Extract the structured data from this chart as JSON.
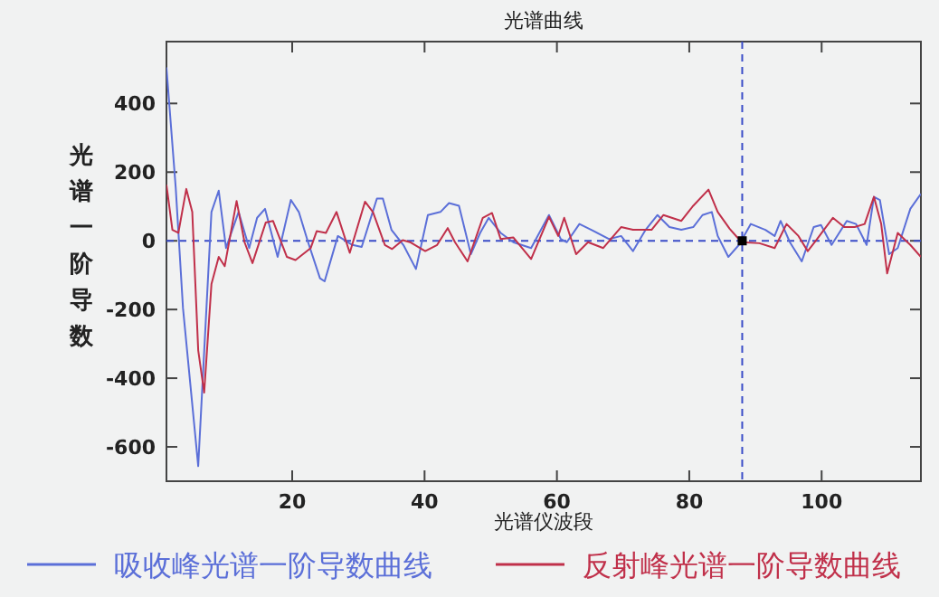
{
  "chart_data": {
    "type": "line",
    "title": "光谱曲线",
    "xlabel": "光谱仪波段",
    "ylabel": "光谱一阶导数",
    "xlim": [
      1,
      115
    ],
    "xticks": [
      20,
      40,
      60,
      80,
      100
    ],
    "ylim": [
      -700,
      580
    ],
    "yticks": [
      -600,
      -400,
      -200,
      0,
      200,
      400
    ],
    "grid": false,
    "legend": "bottom",
    "line_style": "solid",
    "marker": "none",
    "ref_lines": [
      {
        "axis": "y",
        "value": 0,
        "label": null,
        "color": "#3a4cc8",
        "line_style": "dashed"
      },
      {
        "axis": "x",
        "value": 88,
        "label": null,
        "color": "#3a4cc8",
        "line_style": "dashed"
      }
    ],
    "series": [
      {
        "name": "吸收峰光谱一阶导数曲线",
        "color": "#5b6fd8",
        "x": [
          1,
          2.4,
          3.5,
          5.8,
          7.8,
          8.9,
          10,
          11.9,
          13.5,
          14.7,
          15.9,
          17.8,
          19.8,
          21,
          22.4,
          24.2,
          24.9,
          26.9,
          29.1,
          30.5,
          32.8,
          33.7,
          35,
          36.8,
          38.7,
          40.5,
          42.4,
          43.7,
          45.2,
          47,
          48.4,
          49.7,
          51.5,
          53.4,
          56.1,
          58.8,
          60.6,
          61.5,
          63.4,
          65.2,
          67.9,
          69.7,
          71.5,
          73.4,
          75.2,
          77,
          78.8,
          80.6,
          82,
          83.4,
          84.3,
          85.9,
          87.5,
          89.3,
          91.5,
          92.9,
          93.8,
          95.2,
          97,
          98.8,
          99.9,
          101.5,
          103.8,
          105.2,
          106.8,
          107.9,
          108.8,
          110.2,
          111.5,
          113.4,
          115
        ],
        "values": [
          505,
          155,
          -196,
          -656,
          84,
          146,
          -21,
          84,
          -21,
          67,
          93,
          -47,
          119,
          84,
          -4,
          -109,
          -118,
          14,
          -12,
          -18,
          123,
          123,
          32,
          -12,
          -82,
          75,
          84,
          110,
          102,
          -39,
          23,
          67,
          23,
          -4,
          -21,
          75,
          5,
          -4,
          49,
          32,
          5,
          14,
          -30,
          32,
          75,
          40,
          32,
          40,
          75,
          84,
          14,
          -47,
          -12,
          49,
          32,
          14,
          58,
          -4,
          -60,
          40,
          46,
          -12,
          58,
          49,
          -12,
          128,
          119,
          -39,
          -21,
          93,
          137
        ]
      },
      {
        "name": "反射峰光谱一阶导数曲线",
        "color": "#c0304a",
        "x": [
          1,
          1.9,
          2.8,
          4,
          4.9,
          5.8,
          6.7,
          7.8,
          8.9,
          9.8,
          11.6,
          12.8,
          14,
          16,
          17.1,
          19.2,
          20.5,
          22.8,
          23.7,
          25.1,
          26.7,
          28.7,
          31,
          32.2,
          34,
          35.1,
          36.7,
          37.8,
          40.1,
          41.9,
          43.5,
          44.6,
          46.5,
          48.8,
          50.2,
          51.5,
          53.4,
          56.1,
          58.8,
          60.2,
          61.1,
          62.9,
          64.7,
          67,
          69.7,
          71.5,
          74.3,
          76.1,
          78.8,
          80.6,
          82.9,
          84.3,
          86.1,
          87.9,
          90.6,
          92.9,
          94.7,
          96.5,
          97.9,
          99.3,
          101.7,
          103.4,
          105,
          106.5,
          107.9,
          109,
          109.9,
          111.5,
          113.4,
          115
        ],
        "values": [
          163,
          32,
          23,
          151,
          84,
          -319,
          -442,
          -126,
          -47,
          -74,
          116,
          -4,
          -65,
          53,
          58,
          -47,
          -56,
          -21,
          28,
          23,
          84,
          -35,
          114,
          84,
          -12,
          -24,
          2,
          -4,
          -30,
          -12,
          37,
          -4,
          -60,
          67,
          81,
          5,
          10,
          -53,
          70,
          14,
          67,
          -39,
          -4,
          -21,
          40,
          32,
          32,
          75,
          58,
          102,
          149,
          84,
          35,
          -4,
          -7,
          -21,
          49,
          14,
          -30,
          5,
          67,
          40,
          40,
          49,
          128,
          49,
          -95,
          23,
          -12,
          -47
        ]
      },
      {
        "type": "scatter",
        "color": "#000000",
        "x": [
          88
        ],
        "values": [
          0
        ],
        "marker": "square"
      }
    ]
  }
}
